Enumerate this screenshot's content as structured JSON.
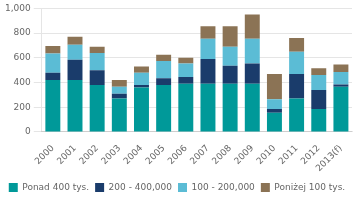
{
  "chart_data": {
    "type": "bar",
    "stacked": true,
    "grid": true,
    "legend": "bottom",
    "categories": [
      "2000",
      "2001",
      "2002",
      "2003",
      "2004",
      "2005",
      "2006",
      "2007",
      "2008",
      "2009",
      "2010",
      "2011",
      "2012",
      "2013(f)"
    ],
    "series": [
      {
        "name": "Ponad 400 tys.",
        "color": "#009999",
        "values": [
          420,
          420,
          380,
          270,
          360,
          380,
          390,
          390,
          390,
          390,
          155,
          270,
          185,
          365
        ]
      },
      {
        "name": "200 - 400,000",
        "color": "#1a3c6b",
        "values": [
          60,
          165,
          120,
          40,
          20,
          55,
          55,
          200,
          145,
          165,
          30,
          200,
          155,
          20
        ]
      },
      {
        "name": "100 - 200,000",
        "color": "#5bbcd5",
        "values": [
          155,
          120,
          140,
          55,
          100,
          140,
          110,
          165,
          155,
          200,
          80,
          180,
          120,
          100
        ]
      },
      {
        "name": "Poniżej 100 tys.",
        "color": "#8b7355",
        "values": [
          60,
          65,
          50,
          55,
          50,
          50,
          45,
          100,
          165,
          195,
          205,
          110,
          55,
          60
        ]
      }
    ],
    "ylim": [
      0,
      1000
    ],
    "yticks": [
      0,
      200,
      400,
      600,
      800,
      {
        "value": 1000,
        "label": "1,000"
      }
    ]
  }
}
